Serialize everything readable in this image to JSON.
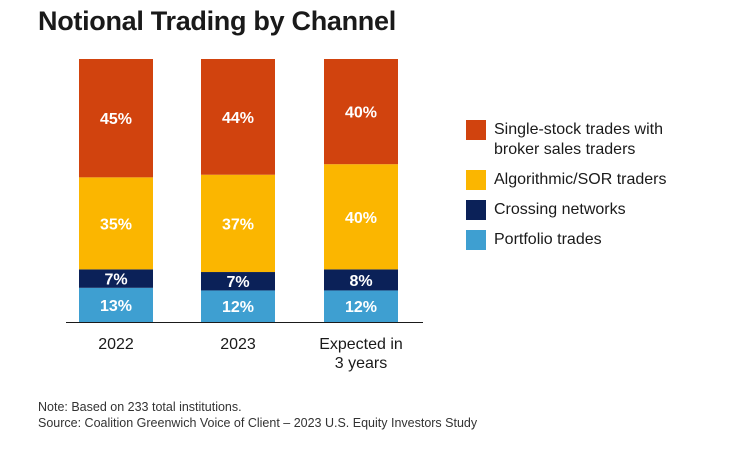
{
  "title": "Notional Trading by Channel",
  "notes": {
    "note": "Note: Based on 233 total institutions.",
    "source": "Source: Coalition Greenwich Voice of Client – 2023 U.S. Equity Investors Study"
  },
  "colors": {
    "single_stock": "#d1430e",
    "algorithmic": "#fbb600",
    "crossing": "#0b2158",
    "portfolio": "#3e9fd1"
  },
  "chart_data": {
    "type": "bar",
    "stacked": true,
    "title": "Notional Trading by Channel",
    "xlabel": "",
    "ylabel": "",
    "ylim": [
      0,
      100
    ],
    "categories": [
      "2022",
      "2023",
      "Expected in\n3 years"
    ],
    "series": [
      {
        "name": "Portfolio trades",
        "key": "portfolio",
        "values": [
          13,
          12,
          12
        ],
        "labels": [
          "13%",
          "12%",
          "12%"
        ],
        "label_color": "#ffffff"
      },
      {
        "name": "Crossing networks",
        "key": "crossing",
        "values": [
          7,
          7,
          8
        ],
        "labels": [
          "7%",
          "7%",
          "8%"
        ],
        "label_color": "#ffffff"
      },
      {
        "name": "Algorithmic/SOR traders",
        "key": "algorithmic",
        "values": [
          35,
          37,
          40
        ],
        "labels": [
          "35%",
          "37%",
          "40%"
        ],
        "label_color": "#ffffff"
      },
      {
        "name": "Single-stock trades with\nbroker sales traders",
        "key": "single_stock",
        "values": [
          45,
          44,
          40
        ],
        "labels": [
          "45%",
          "44%",
          "40%"
        ],
        "label_color": "#ffffff"
      }
    ],
    "legend": {
      "placement": "right",
      "order": [
        "single_stock",
        "algorithmic",
        "crossing",
        "portfolio"
      ]
    }
  }
}
